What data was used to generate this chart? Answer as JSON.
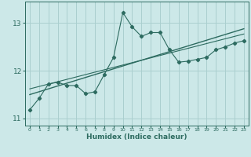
{
  "title": "",
  "xlabel": "Humidex (Indice chaleur)",
  "ylabel": "",
  "bg_color": "#cce8e8",
  "line_color": "#2d6b60",
  "grid_color": "#aacfcf",
  "x_values": [
    0,
    1,
    2,
    3,
    4,
    5,
    6,
    7,
    8,
    9,
    10,
    11,
    12,
    13,
    14,
    15,
    16,
    17,
    18,
    19,
    20,
    21,
    22,
    23
  ],
  "y_main": [
    11.18,
    11.42,
    11.72,
    11.76,
    11.69,
    11.69,
    11.52,
    11.56,
    11.92,
    12.28,
    13.22,
    12.92,
    12.72,
    12.8,
    12.8,
    12.44,
    12.18,
    12.2,
    12.24,
    12.28,
    12.44,
    12.5,
    12.58,
    12.63
  ],
  "y_trend1": [
    11.5,
    11.56,
    11.62,
    11.68,
    11.74,
    11.8,
    11.86,
    11.92,
    11.98,
    12.04,
    12.1,
    12.16,
    12.22,
    12.28,
    12.34,
    12.4,
    12.46,
    12.52,
    12.58,
    12.64,
    12.7,
    12.76,
    12.82,
    12.88
  ],
  "y_trend2": [
    11.62,
    11.67,
    11.72,
    11.77,
    11.82,
    11.87,
    11.92,
    11.97,
    12.02,
    12.07,
    12.12,
    12.17,
    12.22,
    12.27,
    12.32,
    12.37,
    12.42,
    12.47,
    12.52,
    12.57,
    12.62,
    12.67,
    12.72,
    12.77
  ],
  "ylim": [
    10.85,
    13.45
  ],
  "yticks": [
    11,
    12,
    13
  ],
  "xticks": [
    0,
    1,
    2,
    3,
    4,
    5,
    6,
    7,
    8,
    9,
    10,
    11,
    12,
    13,
    14,
    15,
    16,
    17,
    18,
    19,
    20,
    21,
    22,
    23
  ]
}
